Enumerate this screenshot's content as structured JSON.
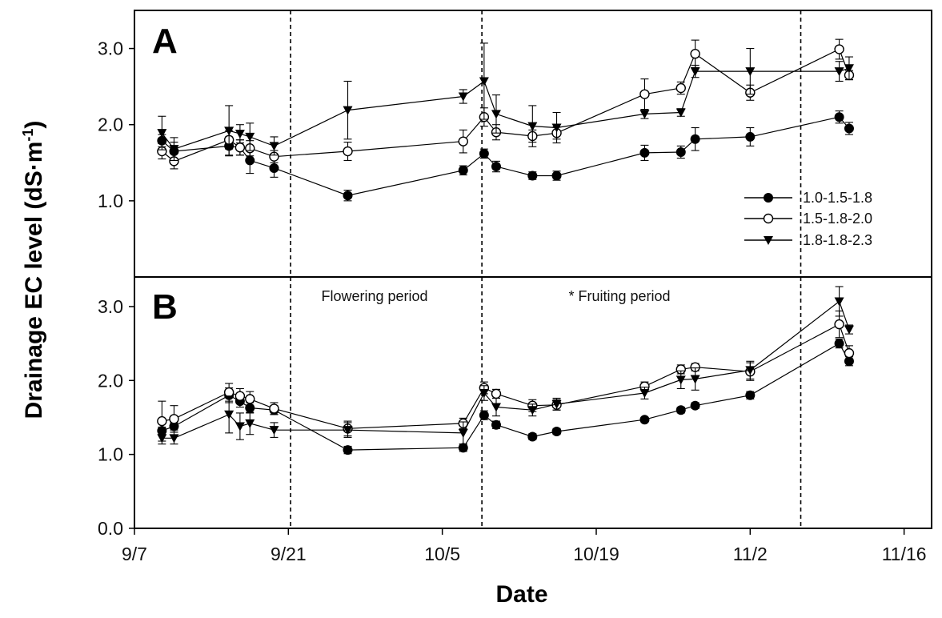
{
  "chart_data": {
    "type": "line",
    "x_label": "Date",
    "y_label_main": "Drainage EC level (dS·m",
    "y_label_sup": "-1",
    "y_label_close": ")",
    "x_ticks": [
      {
        "label": "9/7",
        "day": 0
      },
      {
        "label": "9/21",
        "day": 14
      },
      {
        "label": "10/5",
        "day": 28
      },
      {
        "label": "10/19",
        "day": 42
      },
      {
        "label": "11/2",
        "day": 56
      },
      {
        "label": "11/16",
        "day": 70
      }
    ],
    "x_range_days": [
      0,
      72.5
    ],
    "x_day_zero": "9/7",
    "vlines_days": [
      14.2,
      31.6,
      60.6
    ],
    "annotations": [
      "Flowering period",
      "* Fruiting period"
    ],
    "legend": [
      "1.0-1.5-1.8",
      "1.5-1.8-2.0",
      "1.8-1.8-2.3"
    ],
    "marker_styles": [
      "filled-circle",
      "open-circle",
      "filled-triangle-down"
    ],
    "panels": [
      {
        "label": "A",
        "y_ticks": [
          "1.0",
          "2.0",
          "3.0"
        ],
        "y_tick_values": [
          1.0,
          2.0,
          3.0
        ],
        "y_range": [
          0.0,
          3.5
        ],
        "series": [
          {
            "name": "1.0-1.5-1.8",
            "x": [
              2.5,
              3.6,
              8.6,
              9.6,
              10.5,
              12.7,
              19.4,
              29.9,
              31.8,
              32.9,
              36.2,
              38.4,
              46.4,
              49.7,
              51.0,
              56.0,
              64.1,
              65.0
            ],
            "y": [
              1.79,
              1.65,
              1.72,
              1.7,
              1.53,
              1.43,
              1.07,
              1.4,
              1.62,
              1.45,
              1.33,
              1.33,
              1.63,
              1.64,
              1.81,
              1.84,
              2.1,
              1.95
            ],
            "err": [
              0.08,
              0.12,
              0.12,
              0.1,
              0.17,
              0.12,
              0.07,
              0.06,
              0.06,
              0.07,
              0.05,
              0.06,
              0.1,
              0.08,
              0.15,
              0.12,
              0.08,
              0.08
            ]
          },
          {
            "name": "1.5-1.8-2.0",
            "x": [
              2.5,
              3.6,
              8.6,
              9.6,
              10.5,
              12.7,
              19.4,
              29.9,
              31.8,
              32.9,
              36.2,
              38.4,
              46.4,
              49.7,
              51.0,
              56.0,
              64.1,
              65.0
            ],
            "y": [
              1.65,
              1.52,
              1.8,
              1.7,
              1.69,
              1.58,
              1.65,
              1.78,
              2.1,
              1.9,
              1.85,
              1.89,
              2.4,
              2.48,
              2.93,
              2.42,
              2.99,
              2.65
            ],
            "err": [
              0.1,
              0.1,
              0.12,
              0.1,
              0.1,
              0.08,
              0.12,
              0.15,
              0.12,
              0.1,
              0.08,
              0.08,
              0.2,
              0.08,
              0.18,
              0.1,
              0.13,
              0.06
            ]
          },
          {
            "name": "1.8-1.8-2.3",
            "x": [
              2.5,
              3.6,
              8.6,
              9.6,
              10.5,
              12.7,
              19.4,
              29.9,
              31.8,
              32.9,
              36.2,
              38.4,
              46.4,
              49.7,
              51.0,
              56.0,
              64.1,
              65.0
            ],
            "y": [
              1.89,
              1.68,
              1.92,
              1.88,
              1.84,
              1.72,
              2.19,
              2.37,
              2.57,
              2.14,
              1.98,
              1.96,
              2.14,
              2.16,
              2.7,
              2.7,
              2.7,
              2.74
            ],
            "err": [
              0.22,
              0.15,
              0.33,
              0.12,
              0.18,
              0.12,
              0.38,
              0.09,
              0.5,
              0.25,
              0.27,
              0.2,
              0.06,
              0.05,
              0.08,
              0.3,
              0.13,
              0.15
            ]
          }
        ]
      },
      {
        "label": "B",
        "y_ticks": [
          "0.0",
          "1.0",
          "2.0",
          "3.0"
        ],
        "y_tick_values": [
          0.0,
          1.0,
          2.0,
          3.0
        ],
        "y_range": [
          0.0,
          3.4
        ],
        "series": [
          {
            "name": "1.0-1.5-1.8",
            "x": [
              2.5,
              3.6,
              8.6,
              9.6,
              10.5,
              12.7,
              19.4,
              29.9,
              31.8,
              32.9,
              36.2,
              38.4,
              46.4,
              49.7,
              51.0,
              56.0,
              64.1,
              65.0
            ],
            "y": [
              1.32,
              1.38,
              1.8,
              1.72,
              1.63,
              1.6,
              1.06,
              1.09,
              1.53,
              1.4,
              1.24,
              1.31,
              1.47,
              1.6,
              1.66,
              1.8,
              2.5,
              2.26
            ],
            "err": [
              0.05,
              0.05,
              0.1,
              0.08,
              0.07,
              0.06,
              0.05,
              0.05,
              0.06,
              0.05,
              0.04,
              0.04,
              0.03,
              0.04,
              0.04,
              0.05,
              0.06,
              0.06
            ]
          },
          {
            "name": "1.5-1.8-2.0",
            "x": [
              2.5,
              3.6,
              8.6,
              9.6,
              10.5,
              12.7,
              19.4,
              29.9,
              31.8,
              32.9,
              36.2,
              38.4,
              46.4,
              49.7,
              51.0,
              56.0,
              64.1,
              65.0
            ],
            "y": [
              1.45,
              1.48,
              1.84,
              1.79,
              1.75,
              1.62,
              1.35,
              1.42,
              1.9,
              1.82,
              1.66,
              1.67,
              1.92,
              2.15,
              2.18,
              2.12,
              2.76,
              2.37
            ],
            "err": [
              0.27,
              0.18,
              0.12,
              0.1,
              0.1,
              0.08,
              0.1,
              0.07,
              0.08,
              0.06,
              0.08,
              0.07,
              0.06,
              0.06,
              0.05,
              0.12,
              0.18,
              0.1
            ]
          },
          {
            "name": "1.8-1.8-2.3",
            "x": [
              2.5,
              3.6,
              8.6,
              9.6,
              10.5,
              12.7,
              19.4,
              29.9,
              31.8,
              32.9,
              36.2,
              38.4,
              46.4,
              49.7,
              51.0,
              56.0,
              64.1,
              65.0
            ],
            "y": [
              1.22,
              1.22,
              1.54,
              1.38,
              1.42,
              1.33,
              1.33,
              1.29,
              1.83,
              1.64,
              1.6,
              1.68,
              1.83,
              2.01,
              2.02,
              2.14,
              3.07,
              2.69
            ],
            "err": [
              0.08,
              0.08,
              0.25,
              0.18,
              0.15,
              0.1,
              0.1,
              0.15,
              0.1,
              0.12,
              0.08,
              0.08,
              0.08,
              0.12,
              0.15,
              0.12,
              0.2,
              0.06
            ]
          }
        ]
      }
    ]
  }
}
